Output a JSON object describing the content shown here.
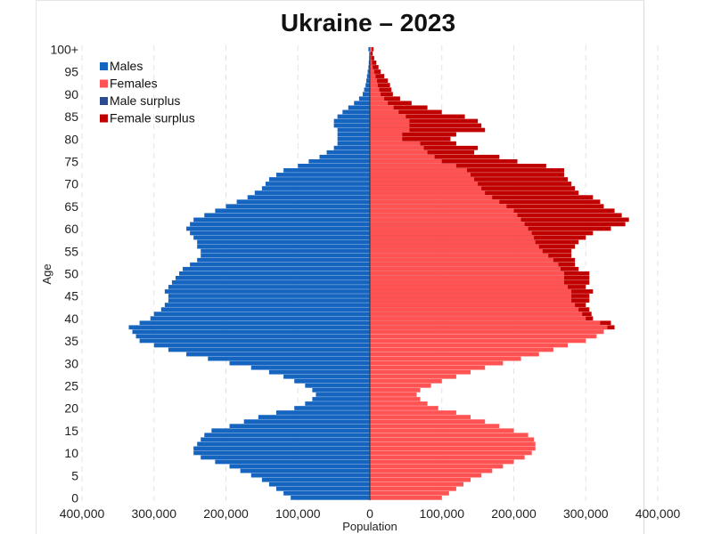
{
  "chart_data": {
    "type": "bar",
    "orientation": "horizontal",
    "title": "Ukraine – 2023",
    "xlabel": "Population",
    "ylabel": "Age",
    "xlim": [
      -400000,
      400000
    ],
    "x_ticks": [
      -400000,
      -300000,
      -200000,
      -100000,
      0,
      100000,
      200000,
      300000,
      400000
    ],
    "x_tick_labels": [
      "400,000",
      "300,000",
      "200,000",
      "100,000",
      "0",
      "100,000",
      "200,000",
      "300,000",
      "400,000"
    ],
    "y_ticks": [
      0,
      5,
      10,
      15,
      20,
      25,
      30,
      35,
      40,
      45,
      50,
      55,
      60,
      65,
      70,
      75,
      80,
      85,
      90,
      95,
      100
    ],
    "y_tick_labels": [
      "0",
      "5",
      "10",
      "15",
      "20",
      "25",
      "30",
      "35",
      "40",
      "45",
      "50",
      "55",
      "60",
      "65",
      "70",
      "75",
      "80",
      "85",
      "90",
      "95",
      "100+"
    ],
    "grid": "vertical dashed",
    "legend": "top-left",
    "series": [
      {
        "name": "Males",
        "color": "#1565c0"
      },
      {
        "name": "Females",
        "color": "#ff5252"
      },
      {
        "name": "Male surplus",
        "color": "#2e4b8f"
      },
      {
        "name": "Female surplus",
        "color": "#c00000"
      }
    ],
    "ages": [
      0,
      1,
      2,
      3,
      4,
      5,
      6,
      7,
      8,
      9,
      10,
      11,
      12,
      13,
      14,
      15,
      16,
      17,
      18,
      19,
      20,
      21,
      22,
      23,
      24,
      25,
      26,
      27,
      28,
      29,
      30,
      31,
      32,
      33,
      34,
      35,
      36,
      37,
      38,
      39,
      40,
      41,
      42,
      43,
      44,
      45,
      46,
      47,
      48,
      49,
      50,
      51,
      52,
      53,
      54,
      55,
      56,
      57,
      58,
      59,
      60,
      61,
      62,
      63,
      64,
      65,
      66,
      67,
      68,
      69,
      70,
      71,
      72,
      73,
      74,
      75,
      76,
      77,
      78,
      79,
      80,
      81,
      82,
      83,
      84,
      85,
      86,
      87,
      88,
      89,
      90,
      91,
      92,
      93,
      94,
      95,
      96,
      97,
      98,
      99,
      100
    ],
    "males": [
      110000,
      120000,
      130000,
      140000,
      150000,
      165000,
      180000,
      195000,
      215000,
      235000,
      245000,
      245000,
      240000,
      235000,
      230000,
      220000,
      195000,
      175000,
      155000,
      130000,
      105000,
      90000,
      80000,
      75000,
      80000,
      90000,
      105000,
      120000,
      140000,
      165000,
      195000,
      225000,
      255000,
      280000,
      300000,
      320000,
      325000,
      330000,
      335000,
      320000,
      305000,
      300000,
      290000,
      285000,
      280000,
      280000,
      285000,
      280000,
      275000,
      270000,
      265000,
      260000,
      250000,
      240000,
      235000,
      235000,
      240000,
      240000,
      245000,
      250000,
      255000,
      250000,
      245000,
      230000,
      215000,
      200000,
      185000,
      170000,
      160000,
      150000,
      145000,
      140000,
      130000,
      120000,
      100000,
      85000,
      70000,
      60000,
      50000,
      45000,
      45000,
      45000,
      45000,
      50000,
      50000,
      45000,
      38000,
      30000,
      22000,
      15000,
      10000,
      8000,
      6000,
      5000,
      4000,
      3000,
      2000,
      1500,
      1000,
      800,
      2000
    ],
    "females": [
      100000,
      110000,
      120000,
      130000,
      140000,
      155000,
      170000,
      185000,
      200000,
      215000,
      225000,
      230000,
      230000,
      228000,
      220000,
      200000,
      180000,
      160000,
      140000,
      120000,
      95000,
      80000,
      70000,
      65000,
      70000,
      85000,
      100000,
      120000,
      140000,
      160000,
      185000,
      210000,
      235000,
      255000,
      275000,
      300000,
      315000,
      325000,
      330000,
      320000,
      300000,
      295000,
      290000,
      285000,
      280000,
      280000,
      280000,
      275000,
      270000,
      270000,
      270000,
      265000,
      262000,
      255000,
      248000,
      240000,
      235000,
      230000,
      228000,
      225000,
      220000,
      215000,
      210000,
      205000,
      200000,
      190000,
      180000,
      170000,
      160000,
      155000,
      150000,
      145000,
      140000,
      135000,
      120000,
      100000,
      90000,
      80000,
      75000,
      70000,
      45000,
      45000,
      55000,
      55000,
      55000,
      50000,
      40000,
      33000,
      25000,
      20000,
      15000,
      13000,
      11000,
      10000,
      8000,
      6000,
      4000,
      3000,
      2000,
      1500,
      3000
    ],
    "female_surplus_total": [
      100000,
      110000,
      120000,
      130000,
      140000,
      155000,
      170000,
      185000,
      200000,
      215000,
      225000,
      230000,
      230000,
      228000,
      220000,
      200000,
      180000,
      160000,
      140000,
      120000,
      95000,
      80000,
      70000,
      65000,
      70000,
      85000,
      100000,
      120000,
      140000,
      160000,
      185000,
      210000,
      235000,
      255000,
      275000,
      300000,
      315000,
      325000,
      340000,
      335000,
      310000,
      308000,
      305000,
      300000,
      305000,
      305000,
      310000,
      300000,
      305000,
      305000,
      305000,
      290000,
      285000,
      285000,
      280000,
      280000,
      285000,
      290000,
      300000,
      310000,
      335000,
      355000,
      360000,
      350000,
      340000,
      325000,
      320000,
      310000,
      290000,
      285000,
      280000,
      275000,
      270000,
      270000,
      245000,
      205000,
      180000,
      145000,
      150000,
      120000,
      112000,
      120000,
      160000,
      155000,
      150000,
      132000,
      100000,
      80000,
      58000,
      42000,
      32000,
      30000,
      28000,
      25000,
      20000,
      15000,
      12000,
      9000,
      6000,
      4000,
      5000
    ]
  },
  "legend_items": [
    {
      "label": "Males",
      "color": "#1565c0"
    },
    {
      "label": "Females",
      "color": "#ff5252"
    },
    {
      "label": "Male surplus",
      "color": "#2e4b8f"
    },
    {
      "label": "Female surplus",
      "color": "#c00000"
    }
  ]
}
